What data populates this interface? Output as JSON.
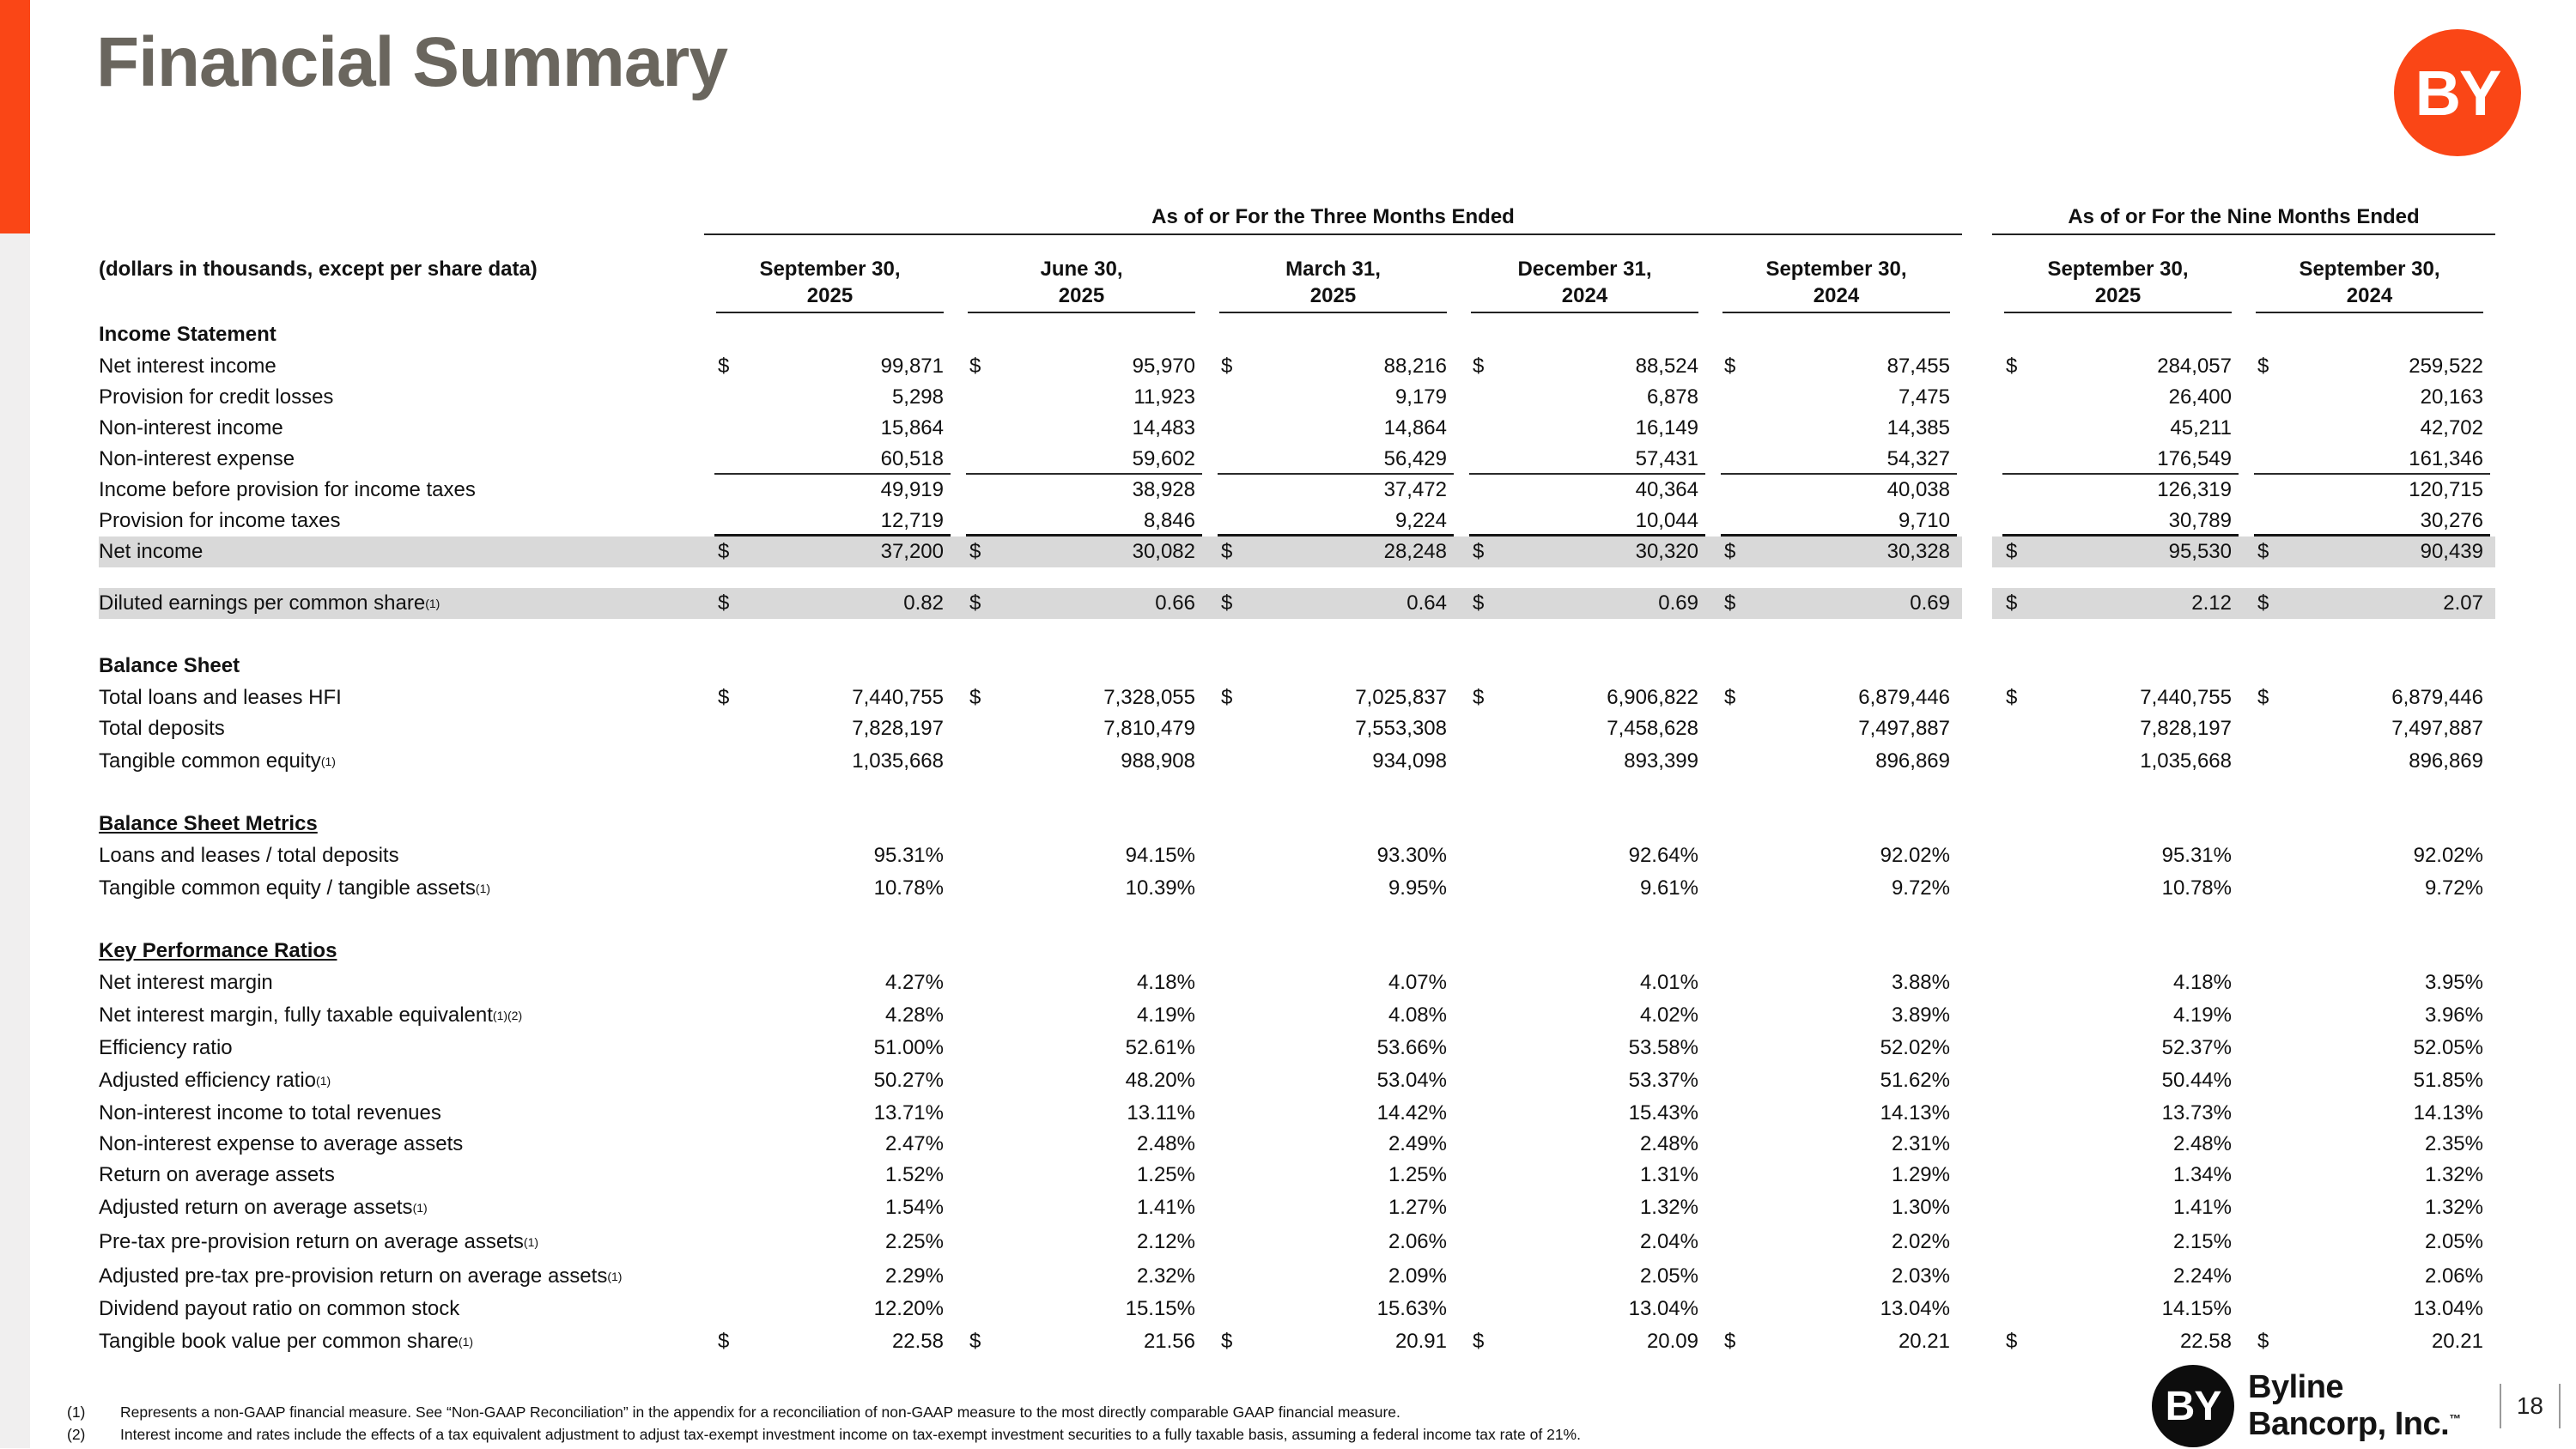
{
  "slide": {
    "title": "Financial Summary",
    "page_number": "18",
    "accent_color": "#FA4616",
    "highlight_color": "#D9D9D9"
  },
  "logo": {
    "monogram": "BY",
    "company": "Byline Bancorp, Inc.",
    "trademark": "™"
  },
  "table": {
    "units_note": "(dollars in thousands, except per share data)",
    "group_headers": [
      {
        "label": "As of or For the Three Months Ended"
      },
      {
        "label": "As of or For the Nine Months Ended"
      }
    ],
    "columns": [
      {
        "line1": "September 30,",
        "line2": "2025"
      },
      {
        "line1": "June 30,",
        "line2": "2025"
      },
      {
        "line1": "March 31,",
        "line2": "2025"
      },
      {
        "line1": "December 31,",
        "line2": "2024"
      },
      {
        "line1": "September 30,",
        "line2": "2024"
      },
      {
        "line1": "September 30,",
        "line2": "2025"
      },
      {
        "line1": "September 30,",
        "line2": "2024"
      }
    ],
    "rows": [
      {
        "type": "section",
        "label": "Income Statement"
      },
      {
        "label": "Net interest income",
        "dollar": true,
        "values": [
          "99,871",
          "95,970",
          "88,216",
          "88,524",
          "87,455",
          "284,057",
          "259,522"
        ]
      },
      {
        "label": "Provision for credit losses",
        "values": [
          "5,298",
          "11,923",
          "9,179",
          "6,878",
          "7,475",
          "26,400",
          "20,163"
        ]
      },
      {
        "label": "Non-interest income",
        "values": [
          "15,864",
          "14,483",
          "14,864",
          "16,149",
          "14,385",
          "45,211",
          "42,702"
        ]
      },
      {
        "label": "Non-interest expense",
        "line": "thin",
        "values": [
          "60,518",
          "59,602",
          "56,429",
          "57,431",
          "54,327",
          "176,549",
          "161,346"
        ]
      },
      {
        "label": "Income before provision for income taxes",
        "values": [
          "49,919",
          "38,928",
          "37,472",
          "40,364",
          "40,038",
          "126,319",
          "120,715"
        ]
      },
      {
        "label": "Provision for income taxes",
        "line": "thick",
        "values": [
          "12,719",
          "8,846",
          "9,224",
          "10,044",
          "9,710",
          "30,789",
          "30,276"
        ]
      },
      {
        "label": "Net income",
        "dollar": true,
        "highlight": true,
        "values": [
          "37,200",
          "30,082",
          "28,248",
          "30,320",
          "30,328",
          "95,530",
          "90,439"
        ]
      },
      {
        "type": "spacer",
        "h": 24
      },
      {
        "label": "Diluted earnings per common share",
        "sup": "(1)",
        "dollar": true,
        "highlight": true,
        "values": [
          "0.82",
          "0.66",
          "0.64",
          "0.69",
          "0.69",
          "2.12",
          "2.07"
        ]
      },
      {
        "type": "spacer",
        "h": 30
      },
      {
        "type": "section",
        "label": "Balance Sheet"
      },
      {
        "label": "Total loans and leases HFI",
        "dollar": true,
        "values": [
          "7,440,755",
          "7,328,055",
          "7,025,837",
          "6,906,822",
          "6,879,446",
          "7,440,755",
          "6,879,446"
        ]
      },
      {
        "label": "Total deposits",
        "values": [
          "7,828,197",
          "7,810,479",
          "7,553,308",
          "7,458,628",
          "7,497,887",
          "7,828,197",
          "7,497,887"
        ]
      },
      {
        "label": "Tangible common equity",
        "sup": "(1)",
        "tall": true,
        "values": [
          "1,035,668",
          "988,908",
          "934,098",
          "893,399",
          "896,869",
          "1,035,668",
          "896,869"
        ]
      },
      {
        "type": "spacer",
        "h": 28
      },
      {
        "type": "section",
        "label": "Balance Sheet Metrics",
        "underline": true
      },
      {
        "label": "Loans and leases / total deposits",
        "values": [
          "95.31%",
          "94.15%",
          "93.30%",
          "92.64%",
          "92.02%",
          "95.31%",
          "92.02%"
        ]
      },
      {
        "label": "Tangible common equity / tangible assets",
        "sup": "(1)",
        "tall": true,
        "values": [
          "10.78%",
          "10.39%",
          "9.95%",
          "9.61%",
          "9.72%",
          "10.78%",
          "9.72%"
        ]
      },
      {
        "type": "spacer",
        "h": 28
      },
      {
        "type": "section",
        "label": "Key Performance Ratios",
        "underline": true
      },
      {
        "label": "Net interest margin",
        "values": [
          "4.27%",
          "4.18%",
          "4.07%",
          "4.01%",
          "3.88%",
          "4.18%",
          "3.95%"
        ]
      },
      {
        "label": "Net interest margin, fully taxable equivalent",
        "sup": " (1)(2)",
        "tall": true,
        "values": [
          "4.28%",
          "4.19%",
          "4.08%",
          "4.02%",
          "3.89%",
          "4.19%",
          "3.96%"
        ]
      },
      {
        "label": "Efficiency ratio",
        "values": [
          "51.00%",
          "52.61%",
          "53.66%",
          "53.58%",
          "52.02%",
          "52.37%",
          "52.05%"
        ]
      },
      {
        "label": "Adjusted efficiency ratio",
        "sup": "(1)",
        "tall": true,
        "values": [
          "50.27%",
          "48.20%",
          "53.04%",
          "53.37%",
          "51.62%",
          "50.44%",
          "51.85%"
        ]
      },
      {
        "label": "Non-interest income to total revenues",
        "values": [
          "13.71%",
          "13.11%",
          "14.42%",
          "15.43%",
          "14.13%",
          "13.73%",
          "14.13%"
        ]
      },
      {
        "label": "Non-interest expense to average assets",
        "values": [
          "2.47%",
          "2.48%",
          "2.49%",
          "2.48%",
          "2.31%",
          "2.48%",
          "2.35%"
        ]
      },
      {
        "label": "Return on average assets",
        "values": [
          "1.52%",
          "1.25%",
          "1.25%",
          "1.31%",
          "1.29%",
          "1.34%",
          "1.32%"
        ]
      },
      {
        "label": "Adjusted return on average assets",
        "sup": "(1)",
        "tall": true,
        "values": [
          "1.54%",
          "1.41%",
          "1.27%",
          "1.32%",
          "1.30%",
          "1.41%",
          "1.32%"
        ]
      },
      {
        "label": "Pre-tax pre-provision return on average assets",
        "sup": " (1)",
        "tall": true,
        "values": [
          "2.25%",
          "2.12%",
          "2.06%",
          "2.04%",
          "2.02%",
          "2.15%",
          "2.05%"
        ]
      },
      {
        "label": "Adjusted pre-tax pre-provision return on average assets",
        "sup": " (1)",
        "tall": true,
        "values": [
          "2.29%",
          "2.32%",
          "2.09%",
          "2.05%",
          "2.03%",
          "2.24%",
          "2.06%"
        ]
      },
      {
        "label": "Dividend payout ratio on common stock",
        "values": [
          "12.20%",
          "15.15%",
          "15.63%",
          "13.04%",
          "13.04%",
          "14.15%",
          "13.04%"
        ]
      },
      {
        "label": "Tangible book value per common share",
        "sup": "(1)",
        "tall": true,
        "dollar": true,
        "values": [
          "22.58",
          "21.56",
          "20.91",
          "20.09",
          "20.21",
          "22.58",
          "20.21"
        ]
      }
    ]
  },
  "footnotes": [
    {
      "num": "(1)",
      "text": "Represents a non-GAAP financial measure.  See “Non-GAAP Reconciliation” in the appendix for a reconciliation of non-GAAP measure to the most directly comparable GAAP financial measure."
    },
    {
      "num": "(2)",
      "text": "Interest income and rates include the effects of a tax equivalent adjustment to adjust tax-exempt investment income on tax-exempt investment securities to a fully taxable basis, assuming a federal income tax rate of 21%."
    }
  ]
}
